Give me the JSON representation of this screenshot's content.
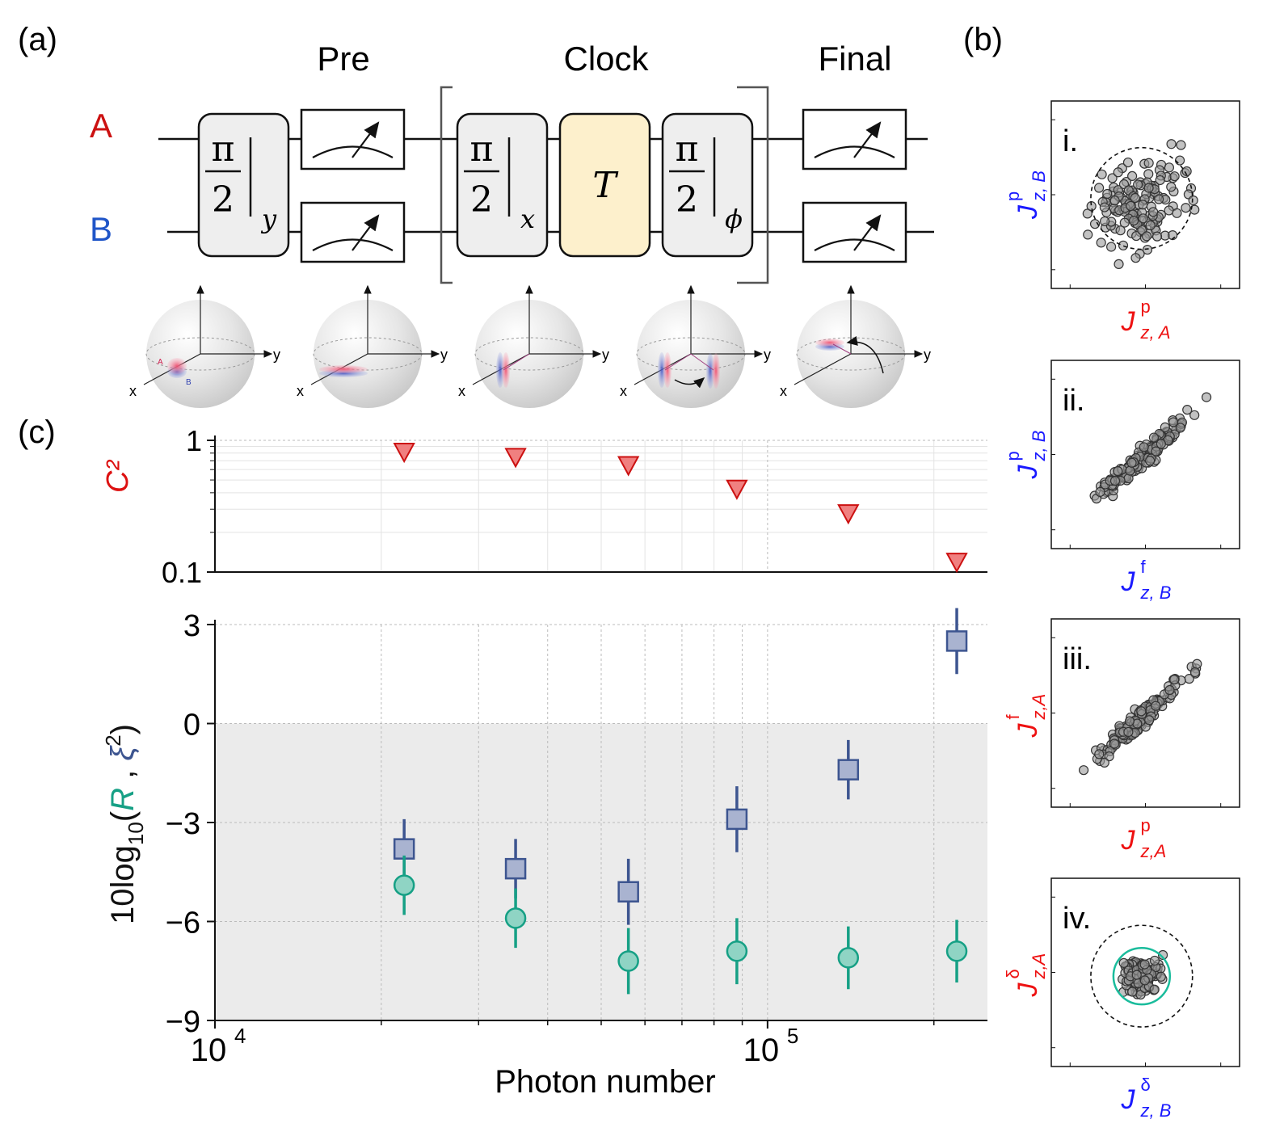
{
  "panels": {
    "a": {
      "label": "(a)",
      "stages": {
        "pre": "Pre",
        "clock": "Clock",
        "final": "Final"
      },
      "qubits": [
        {
          "name": "A",
          "color": "#cc1111"
        },
        {
          "name": "B",
          "color": "#1f55c8"
        }
      ],
      "gates": {
        "pre_rot": {
          "num": "π",
          "den": "2",
          "sub": "y"
        },
        "clock_rot1": {
          "num": "π",
          "den": "2",
          "sub": "x"
        },
        "clock_T": "T",
        "clock_rot2": {
          "num": "π",
          "den": "2",
          "sub": "ϕ"
        }
      },
      "bloch": {
        "axis_x": "x",
        "axis_y": "y",
        "spin_a": "A",
        "spin_b": "B"
      }
    },
    "b": {
      "label": "(b)",
      "scatters": [
        {
          "id": "i",
          "tag": "i.",
          "ylabel": {
            "base": "J",
            "sub": "z, B",
            "sup": "p",
            "color": "#1a1aff"
          },
          "xlabel": {
            "base": "J",
            "sub": "z, A",
            "sup": "p",
            "color": "#ee1111"
          },
          "correlation": 0.0,
          "spread": 1.0,
          "dashed_circle": true,
          "green_circle": false
        },
        {
          "id": "ii",
          "tag": "ii.",
          "ylabel": {
            "base": "J",
            "sub": "z, B",
            "sup": "p",
            "color": "#1a1aff"
          },
          "xlabel": {
            "base": "J",
            "sub": "z, B",
            "sup": "f",
            "color": "#1a1aff"
          },
          "correlation": 0.9,
          "spread": 1.0,
          "dashed_circle": false,
          "green_circle": false
        },
        {
          "id": "iii",
          "tag": "iii.",
          "ylabel": {
            "base": "J",
            "sub": "z,A",
            "sup": "f",
            "color": "#ee1111"
          },
          "xlabel": {
            "base": "J",
            "sub": "z,A",
            "sup": "p",
            "color": "#ee1111"
          },
          "correlation": 0.9,
          "spread": 1.0,
          "dashed_circle": false,
          "green_circle": false
        },
        {
          "id": "iv",
          "tag": "iv.",
          "ylabel": {
            "base": "J",
            "sub": "z,A",
            "sup": "δ",
            "color": "#ee1111"
          },
          "xlabel": {
            "base": "J",
            "sub": "z, B",
            "sup": "δ",
            "color": "#1a1aff"
          },
          "correlation": 0.0,
          "spread": 0.35,
          "dashed_circle": true,
          "green_circle": true
        }
      ]
    },
    "c": {
      "label": "(c)"
    }
  },
  "chart_data": [
    {
      "type": "scatter",
      "scale": "log-log",
      "ylabel": "C²",
      "ylabel_color": "#dd1111",
      "ylim": [
        0.1,
        1
      ],
      "yticks": [
        {
          "value": 1,
          "label": "1"
        },
        {
          "value": 0.1,
          "label": "0.1"
        }
      ],
      "xlim": [
        10000,
        250000
      ],
      "grid": true,
      "series": [
        {
          "marker": "triangle-down",
          "color": "#f08080",
          "edge": "#cc1111",
          "x": [
            22000,
            35000,
            56000,
            88000,
            140000,
            220000
          ],
          "y": [
            0.82,
            0.75,
            0.65,
            0.43,
            0.28,
            0.12
          ]
        }
      ]
    },
    {
      "type": "scatter",
      "xscale": "log",
      "xlabel": "Photon number",
      "ylabel": "10log₁₀(R , ξ²)",
      "xlim": [
        10000,
        250000
      ],
      "ylim": [
        -9,
        3
      ],
      "xticks": [
        {
          "value": 10000,
          "base": "10",
          "exp": "4"
        },
        {
          "value": 100000,
          "base": "10",
          "exp": "5"
        }
      ],
      "yticks": [
        {
          "value": 3,
          "label": "3"
        },
        {
          "value": 0,
          "label": "0"
        },
        {
          "value": -3,
          "label": "−3"
        },
        {
          "value": -6,
          "label": "−6"
        },
        {
          "value": -9,
          "label": "−9"
        }
      ],
      "grid": true,
      "shaded_below": 0,
      "series": [
        {
          "marker": "square",
          "color": "#a9b3d0",
          "edge": "#3d5590",
          "x": [
            22000,
            35000,
            56000,
            88000,
            140000,
            220000
          ],
          "y": [
            -3.8,
            -4.4,
            -5.1,
            -2.9,
            -1.4,
            2.5
          ],
          "err": [
            0.9,
            0.9,
            1.0,
            1.0,
            0.9,
            1.0
          ]
        },
        {
          "marker": "circle",
          "color": "#8fd4c4",
          "edge": "#16a085",
          "x": [
            22000,
            35000,
            56000,
            88000,
            140000,
            220000
          ],
          "y": [
            -4.9,
            -5.9,
            -7.2,
            -6.9,
            -7.1,
            -6.9
          ],
          "err": [
            0.9,
            0.9,
            1.0,
            1.0,
            0.95,
            0.95
          ]
        }
      ]
    }
  ]
}
